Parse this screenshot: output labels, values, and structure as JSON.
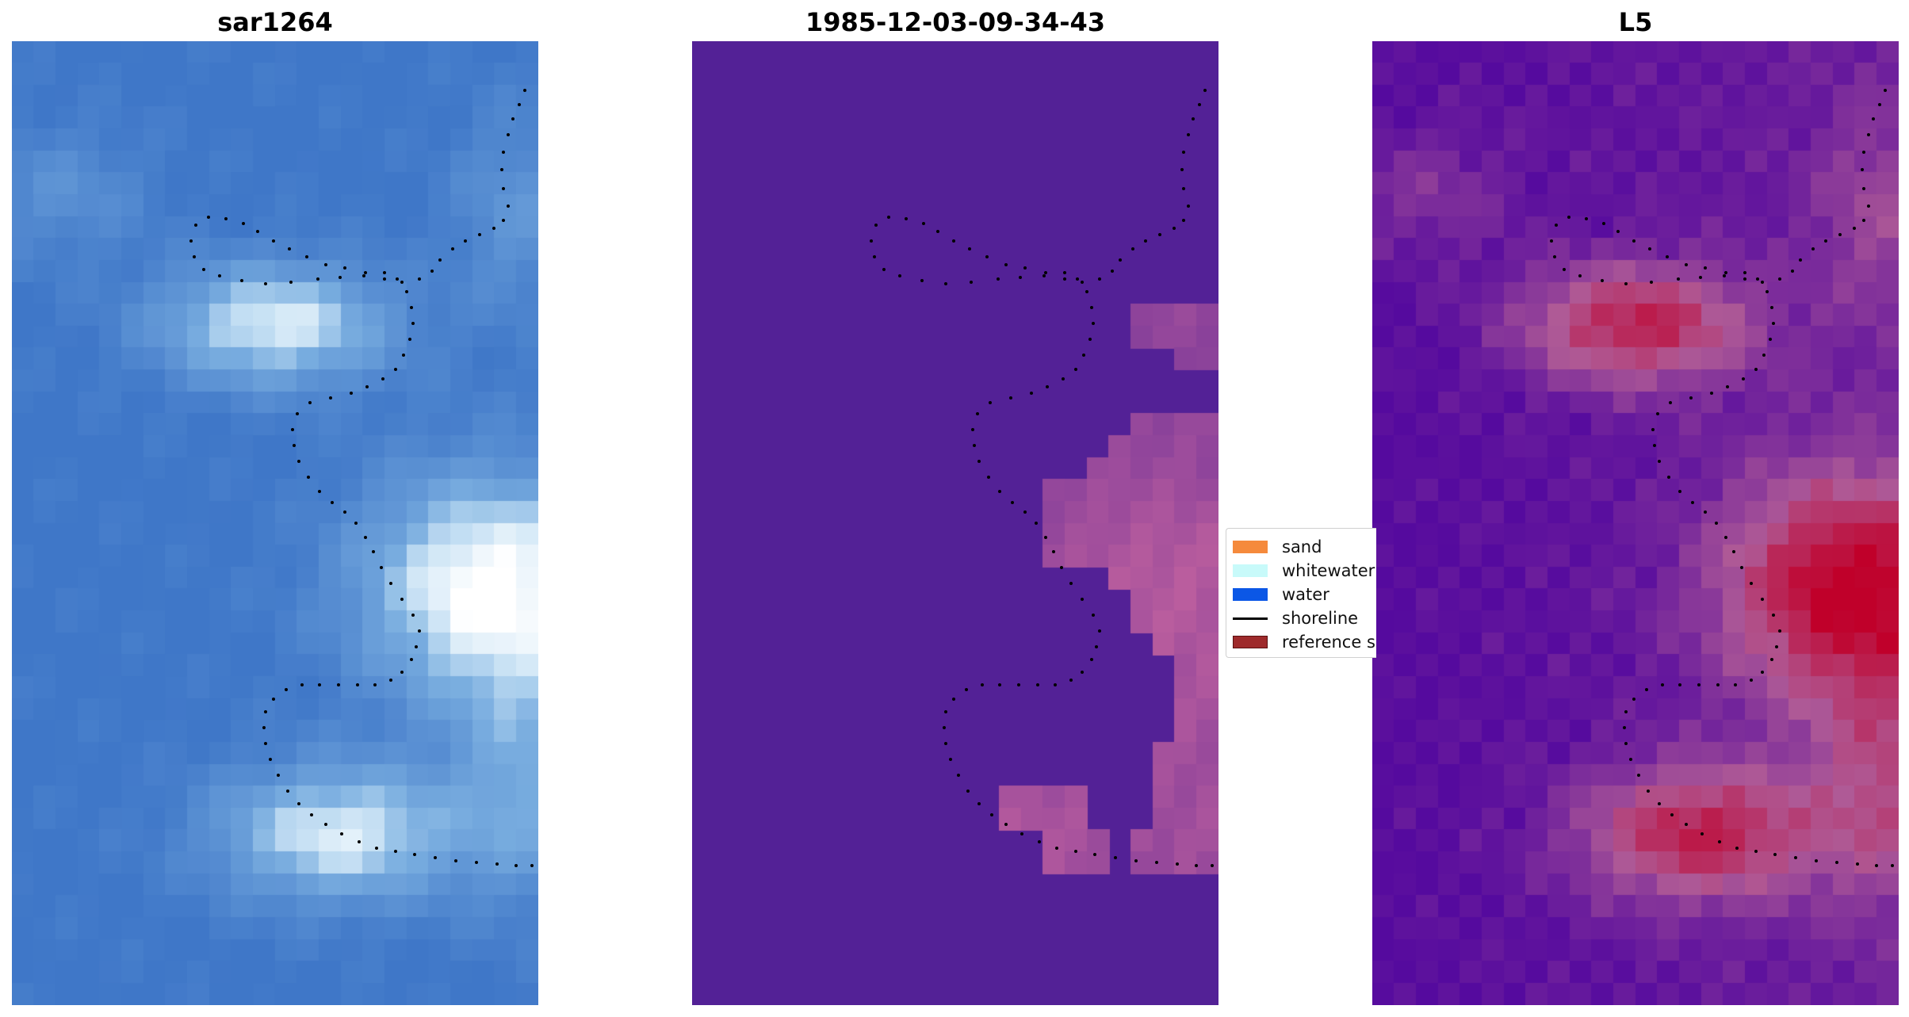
{
  "panels": [
    {
      "id": "rgb",
      "title": "sar1264"
    },
    {
      "id": "class",
      "title": "1985-12-03-09-34-43"
    },
    {
      "id": "index",
      "title": "L5"
    }
  ],
  "legend": {
    "items": [
      {
        "label": "sand",
        "type": "patch",
        "color": "#f58a3c"
      },
      {
        "label": "whitewater",
        "type": "patch",
        "color": "#c8fafa"
      },
      {
        "label": "water",
        "type": "patch",
        "color": "#0b57e6"
      },
      {
        "label": "shoreline",
        "type": "line",
        "color": "#000000"
      },
      {
        "label": "reference s",
        "type": "patch",
        "color": "#9e2a2b"
      }
    ]
  },
  "colors": {
    "rgb_water": "#3f77c8",
    "rgb_bright": "#ffffff",
    "class_background": "#532196",
    "class_highlight": "#bd5f9e",
    "index_low": "#550a9e",
    "index_high": "#c0002a",
    "shoreline_dots": "#000000"
  }
}
